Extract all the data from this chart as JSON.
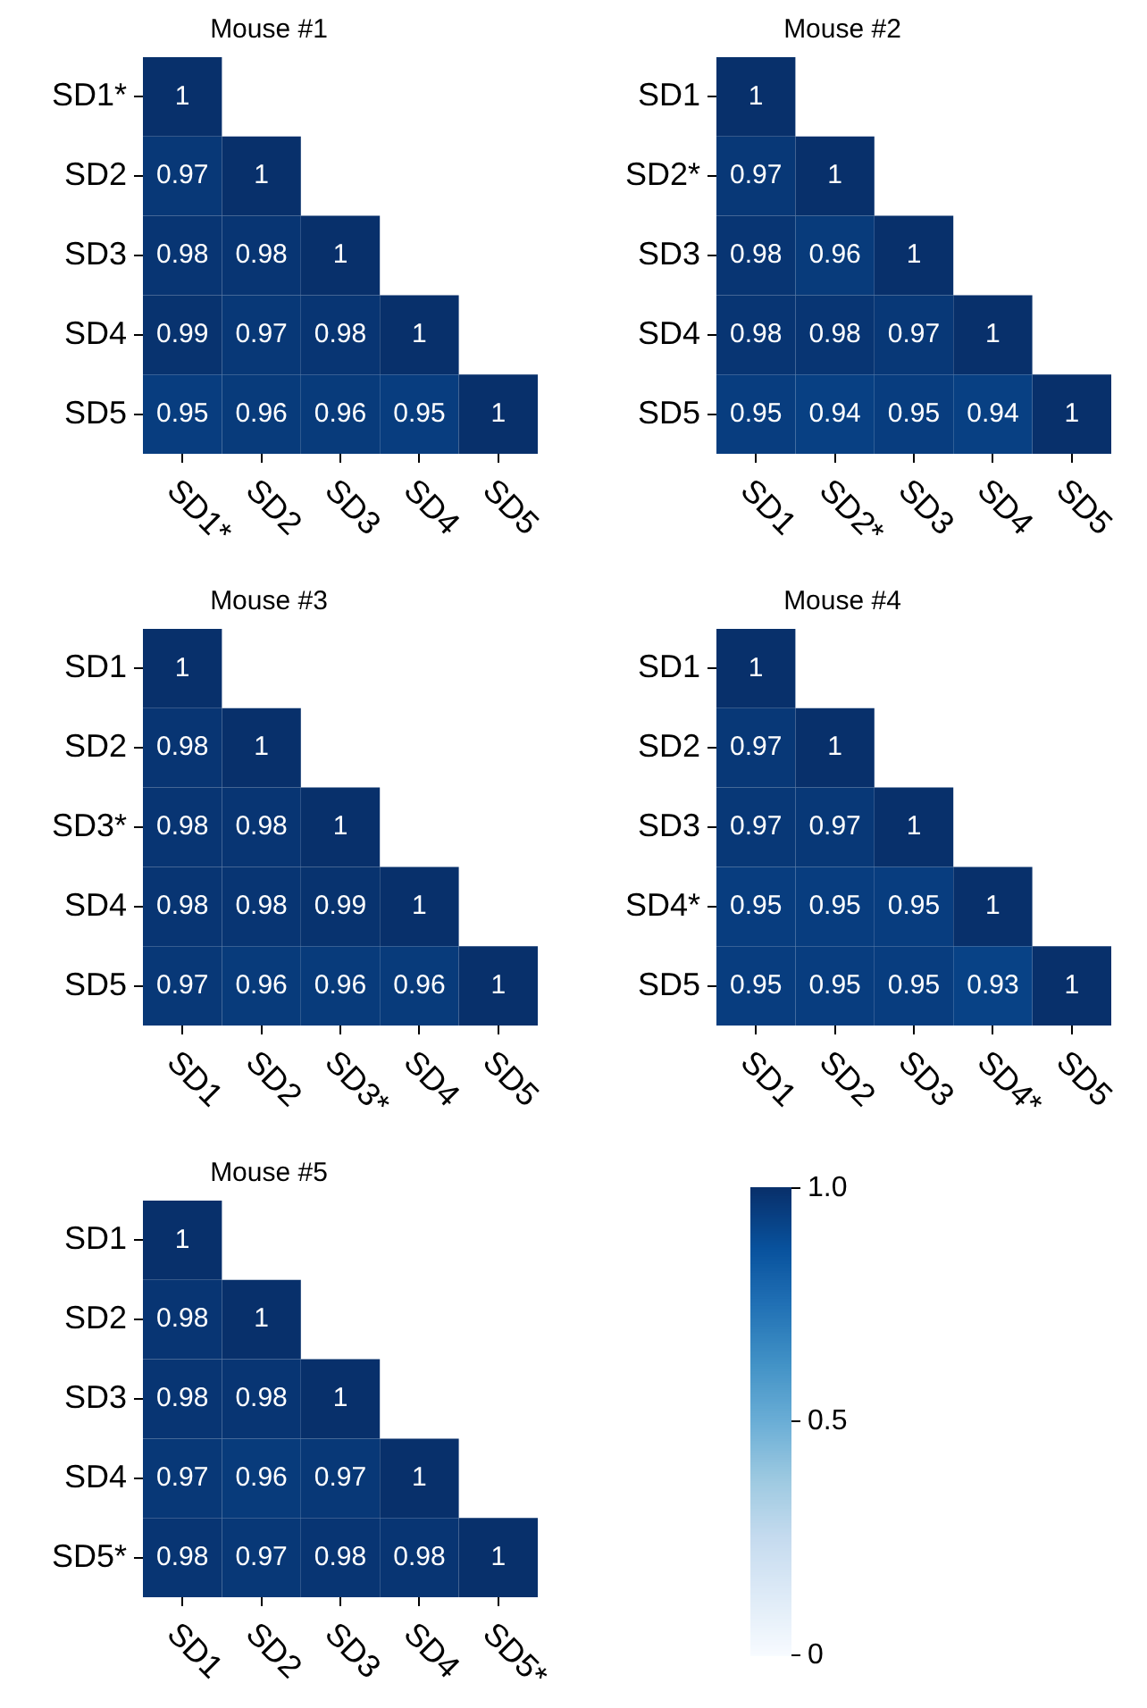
{
  "chart_data": [
    {
      "type": "heatmap",
      "title": "Mouse #1",
      "categories": [
        "SD1*",
        "SD2",
        "SD3",
        "SD4",
        "SD5"
      ],
      "y_categories": [
        "SD1*",
        "SD2",
        "SD3",
        "SD4",
        "SD5"
      ],
      "cells": [
        [
          1,
          null,
          null,
          null,
          null
        ],
        [
          0.97,
          1,
          null,
          null,
          null
        ],
        [
          0.98,
          0.98,
          1,
          null,
          null
        ],
        [
          0.99,
          0.97,
          0.98,
          1,
          null
        ],
        [
          0.95,
          0.96,
          0.96,
          0.95,
          1
        ]
      ],
      "data_labels": true
    },
    {
      "type": "heatmap",
      "title": "Mouse #2",
      "categories": [
        "SD1",
        "SD2*",
        "SD3",
        "SD4",
        "SD5"
      ],
      "y_categories": [
        "SD1",
        "SD2*",
        "SD3",
        "SD4",
        "SD5"
      ],
      "cells": [
        [
          1,
          null,
          null,
          null,
          null
        ],
        [
          0.97,
          1,
          null,
          null,
          null
        ],
        [
          0.98,
          0.96,
          1,
          null,
          null
        ],
        [
          0.98,
          0.98,
          0.97,
          1,
          null
        ],
        [
          0.95,
          0.94,
          0.95,
          0.94,
          1
        ]
      ],
      "data_labels": true
    },
    {
      "type": "heatmap",
      "title": "Mouse #3",
      "categories": [
        "SD1",
        "SD2",
        "SD3*",
        "SD4",
        "SD5"
      ],
      "y_categories": [
        "SD1",
        "SD2",
        "SD3*",
        "SD4",
        "SD5"
      ],
      "cells": [
        [
          1,
          null,
          null,
          null,
          null
        ],
        [
          0.98,
          1,
          null,
          null,
          null
        ],
        [
          0.98,
          0.98,
          1,
          null,
          null
        ],
        [
          0.98,
          0.98,
          0.99,
          1,
          null
        ],
        [
          0.97,
          0.96,
          0.96,
          0.96,
          1
        ]
      ],
      "data_labels": true
    },
    {
      "type": "heatmap",
      "title": "Mouse #4",
      "categories": [
        "SD1",
        "SD2",
        "SD3",
        "SD4*",
        "SD5"
      ],
      "y_categories": [
        "SD1",
        "SD2",
        "SD3",
        "SD4*",
        "SD5"
      ],
      "cells": [
        [
          1,
          null,
          null,
          null,
          null
        ],
        [
          0.97,
          1,
          null,
          null,
          null
        ],
        [
          0.97,
          0.97,
          1,
          null,
          null
        ],
        [
          0.95,
          0.95,
          0.95,
          1,
          null
        ],
        [
          0.95,
          0.95,
          0.95,
          0.93,
          1
        ]
      ],
      "data_labels": true
    },
    {
      "type": "heatmap",
      "title": "Mouse #5",
      "categories": [
        "SD1",
        "SD2",
        "SD3",
        "SD4",
        "SD5*"
      ],
      "y_categories": [
        "SD1",
        "SD2",
        "SD3",
        "SD4",
        "SD5*"
      ],
      "cells": [
        [
          1,
          null,
          null,
          null,
          null
        ],
        [
          0.98,
          1,
          null,
          null,
          null
        ],
        [
          0.98,
          0.98,
          1,
          null,
          null
        ],
        [
          0.97,
          0.96,
          0.97,
          1,
          null
        ],
        [
          0.98,
          0.97,
          0.98,
          0.98,
          1
        ]
      ],
      "clim": [
        0,
        1
      ],
      "cticks": [
        0,
        0.5,
        {
          "value": 1,
          "label": "1.0"
        }
      ],
      "data_labels": true
    }
  ]
}
